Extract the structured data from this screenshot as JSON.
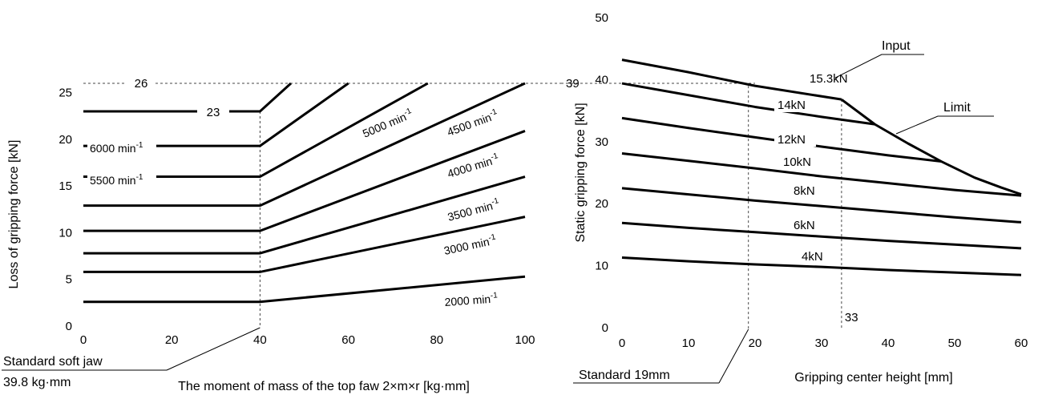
{
  "chart_data": [
    {
      "type": "line",
      "ylabel": "Loss of gripping force [kN]",
      "xlabel": "The moment of mass of the top faw 2×m×r [kg·mm]",
      "xlim": [
        0,
        100
      ],
      "ylim": [
        0,
        26
      ],
      "x_ticks": [
        "0",
        "20",
        "40",
        "60",
        "80",
        "100"
      ],
      "y_ticks": [
        "0",
        "5",
        "10",
        "15",
        "20",
        "25"
      ],
      "grid": false,
      "series": [
        {
          "name": "6000 min",
          "sup": "-1",
          "points": [
            [
              0,
              23
            ],
            [
              40,
              23
            ],
            [
              47,
              26
            ]
          ]
        },
        {
          "name": "5500 min",
          "sup": "-1",
          "points": [
            [
              0,
              19.3
            ],
            [
              40,
              19.3
            ],
            [
              60,
              26
            ]
          ]
        },
        {
          "name": "5000 min",
          "sup": "-1",
          "points": [
            [
              0,
              16
            ],
            [
              40,
              16
            ],
            [
              78,
              26
            ]
          ]
        },
        {
          "name": "4500 min",
          "sup": "-1",
          "points": [
            [
              0,
              12.9
            ],
            [
              40,
              12.9
            ],
            [
              100,
              26
            ]
          ]
        },
        {
          "name": "4000 min",
          "sup": "-1",
          "points": [
            [
              0,
              10.2
            ],
            [
              40,
              10.2
            ],
            [
              100,
              20.9
            ]
          ]
        },
        {
          "name": "3500 min",
          "sup": "-1",
          "points": [
            [
              0,
              7.8
            ],
            [
              40,
              7.8
            ],
            [
              100,
              16
            ]
          ]
        },
        {
          "name": "3000 min",
          "sup": "-1",
          "points": [
            [
              0,
              5.8
            ],
            [
              40,
              5.8
            ],
            [
              100,
              11.7
            ]
          ]
        },
        {
          "name": "2000 min",
          "sup": "-1",
          "points": [
            [
              0,
              2.6
            ],
            [
              40,
              2.6
            ],
            [
              100,
              5.3
            ]
          ]
        }
      ],
      "annotations": {
        "limit_value": "26",
        "level_value": "23",
        "standard_label": "Standard soft jaw",
        "standard_value": "39.8 kg·mm",
        "standard_x": 40
      }
    },
    {
      "type": "line",
      "ylabel": "Static gripping force [kN]",
      "xlabel": "Gripping center height [mm]",
      "xlim": [
        0,
        60
      ],
      "ylim": [
        0,
        50
      ],
      "x_ticks": [
        "0",
        "10",
        "20",
        "30",
        "40",
        "50",
        "60"
      ],
      "y_ticks": [
        "0",
        "10",
        "20",
        "30",
        "40",
        "50"
      ],
      "grid": false,
      "series": [
        {
          "name": "15.3kN",
          "points": [
            [
              0,
              43.2
            ],
            [
              10,
              41.2
            ],
            [
              20,
              39
            ],
            [
              33,
              36.8
            ]
          ]
        },
        {
          "name": "14kN",
          "points": [
            [
              0,
              39.4
            ],
            [
              10,
              37.5
            ],
            [
              20,
              35.6
            ],
            [
              30,
              34
            ],
            [
              38,
              32.8
            ]
          ]
        },
        {
          "name": "12kN",
          "points": [
            [
              0,
              33.8
            ],
            [
              10,
              32.2
            ],
            [
              20,
              30.7
            ],
            [
              30,
              29.2
            ],
            [
              40,
              27.8
            ],
            [
              48,
              26.8
            ]
          ]
        },
        {
          "name": "10kN",
          "points": [
            [
              0,
              28.1
            ],
            [
              10,
              26.9
            ],
            [
              20,
              25.7
            ],
            [
              30,
              24.4
            ],
            [
              40,
              23.3
            ],
            [
              50,
              22.2
            ],
            [
              60,
              21.3
            ]
          ]
        },
        {
          "name": "8kN",
          "points": [
            [
              0,
              22.5
            ],
            [
              10,
              21.5
            ],
            [
              20,
              20.5
            ],
            [
              30,
              19.6
            ],
            [
              40,
              18.7
            ],
            [
              50,
              17.8
            ],
            [
              60,
              17
            ]
          ]
        },
        {
          "name": "6kN",
          "points": [
            [
              0,
              16.9
            ],
            [
              10,
              16.1
            ],
            [
              20,
              15.4
            ],
            [
              30,
              14.7
            ],
            [
              40,
              14
            ],
            [
              50,
              13.4
            ],
            [
              60,
              12.8
            ]
          ]
        },
        {
          "name": "4kN",
          "points": [
            [
              0,
              11.3
            ],
            [
              10,
              10.7
            ],
            [
              20,
              10.2
            ],
            [
              30,
              9.8
            ],
            [
              40,
              9.3
            ],
            [
              50,
              8.9
            ],
            [
              60,
              8.5
            ]
          ]
        },
        {
          "name": "Limit",
          "points": [
            [
              33,
              36.8
            ],
            [
              38,
              32.8
            ],
            [
              43,
              29.7
            ],
            [
              48,
              26.8
            ],
            [
              53,
              24.2
            ],
            [
              57,
              22.6
            ],
            [
              60,
              21.5
            ]
          ]
        }
      ],
      "annotations": {
        "input_label": "Input",
        "limit_label": "Limit",
        "reference_value": "39",
        "standard_label": "Standard 19mm",
        "standard_x": 19,
        "input_x": 33,
        "input_x_label": "33"
      }
    }
  ]
}
